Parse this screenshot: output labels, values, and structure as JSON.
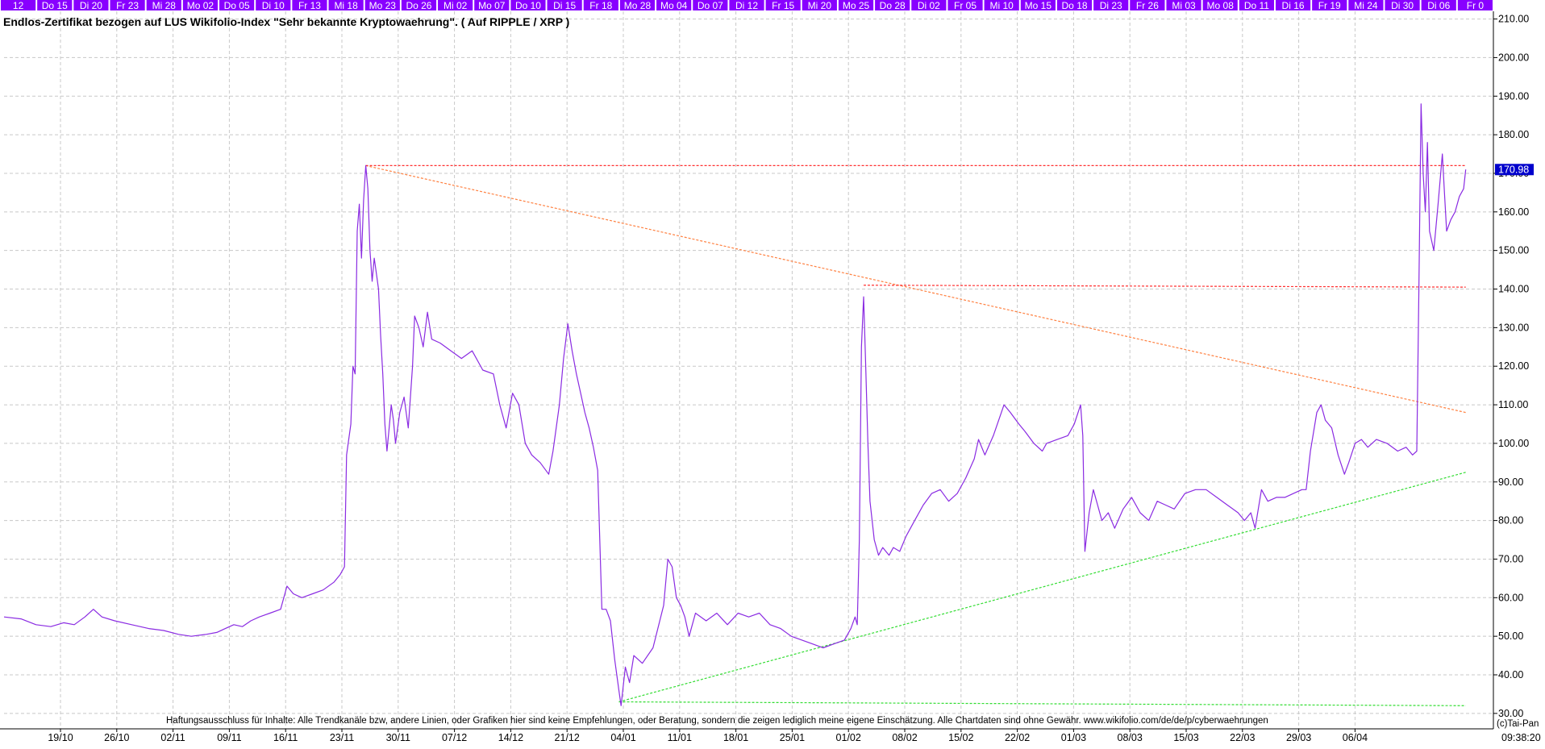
{
  "chart_data": {
    "type": "line",
    "title": "Endlos-Zertifikat bezogen auf LUS Wikifolio-Index \"Sehr bekannte Kryptowaehrung\". ( Auf RIPPLE / XRP )",
    "xlabel": "",
    "ylabel": "",
    "ylim": [
      26,
      212
    ],
    "yticks": [
      "30.00",
      "40.00",
      "50.00",
      "60.00",
      "70.00",
      "80.00",
      "90.00",
      "100.00",
      "110.00",
      "120.00",
      "130.00",
      "140.00",
      "150.00",
      "160.00",
      "170.00",
      "180.00",
      "190.00",
      "200.00",
      "210.00"
    ],
    "grid": true,
    "legend": "none",
    "x_tick_labels": [
      "19/10",
      "26/10",
      "02/11",
      "09/11",
      "16/11",
      "23/11",
      "30/11",
      "07/12",
      "14/12",
      "21/12",
      "04/01",
      "11/01",
      "18/01",
      "25/01",
      "01/02",
      "08/02",
      "15/02",
      "22/02",
      "01/03",
      "08/03",
      "15/03",
      "22/03",
      "29/03",
      "06/04"
    ],
    "top_day_labels": [
      "12",
      "Do 15",
      "Di 20",
      "Fr 23",
      "Mi 28",
      "Mo 02",
      "Do 05",
      "Di 10",
      "Fr 13",
      "Mi 18",
      "Mo 23",
      "Do 26",
      "Mi 02",
      "Mo 07",
      "Do 10",
      "Di 15",
      "Fr 18",
      "Mo 28",
      "Mo 04",
      "Do 07",
      "Di 12",
      "Fr 15",
      "Mi 20",
      "Mo 25",
      "Do 28",
      "Di 02",
      "Fr 05",
      "Mi 10",
      "Mo 15",
      "Do 18",
      "Di 23",
      "Fr 26",
      "Mi 03",
      "Mo 08",
      "Do 11",
      "Di 16",
      "Fr 19",
      "Mi 24",
      "Di 30",
      "Di 06",
      "Fr 0"
    ],
    "last_value": "170.98",
    "time_label": "09:38:20",
    "copyright": "(c)Tai-Pan",
    "disclaimer": "Haftungsausschluss für Inhalte: Alle Trendkanäle bzw, andere Linien, oder Grafiken hier sind keine Empfehlungen, oder Beratung, sondern die zeigen lediglich meine eigene Einschätzung. Alle Chartdaten sind ohne Gewähr.  www.wikifolio.com/de/de/p/cyberwaehrungen",
    "series": [
      {
        "color": "#8a2be2",
        "points": [
          [
            0,
            55
          ],
          [
            8,
            54.5
          ],
          [
            15,
            53
          ],
          [
            22,
            52.5
          ],
          [
            28,
            53.5
          ],
          [
            33,
            53
          ],
          [
            38,
            55
          ],
          [
            42,
            57
          ],
          [
            46,
            55
          ],
          [
            52,
            54
          ],
          [
            60,
            53
          ],
          [
            68,
            52
          ],
          [
            75,
            51.5
          ],
          [
            82,
            50.5
          ],
          [
            88,
            50
          ],
          [
            95,
            50.5
          ],
          [
            100,
            51
          ],
          [
            104,
            52
          ],
          [
            108,
            53
          ],
          [
            112,
            52.5
          ],
          [
            116,
            54
          ],
          [
            120,
            55
          ],
          [
            125,
            56
          ],
          [
            130,
            57
          ],
          [
            133,
            63
          ],
          [
            136,
            61
          ],
          [
            140,
            60
          ],
          [
            145,
            61
          ],
          [
            150,
            62
          ],
          [
            155,
            64
          ],
          [
            158,
            66
          ],
          [
            160,
            68
          ],
          [
            161,
            97
          ],
          [
            163,
            105
          ],
          [
            164,
            120
          ],
          [
            165,
            118
          ],
          [
            166,
            155
          ],
          [
            167,
            162
          ],
          [
            168,
            148
          ],
          [
            169,
            163
          ],
          [
            170,
            172
          ],
          [
            171,
            166
          ],
          [
            172,
            150
          ],
          [
            173,
            142
          ],
          [
            174,
            148
          ],
          [
            175,
            144
          ],
          [
            176,
            140
          ],
          [
            177,
            128
          ],
          [
            178,
            118
          ],
          [
            179,
            105
          ],
          [
            180,
            98
          ],
          [
            181,
            104
          ],
          [
            182,
            110
          ],
          [
            183,
            106
          ],
          [
            184,
            100
          ],
          [
            186,
            108
          ],
          [
            188,
            112
          ],
          [
            190,
            104
          ],
          [
            192,
            120
          ],
          [
            193,
            133
          ],
          [
            195,
            130
          ],
          [
            197,
            125
          ],
          [
            199,
            134
          ],
          [
            201,
            127
          ],
          [
            205,
            126
          ],
          [
            210,
            124
          ],
          [
            215,
            122
          ],
          [
            220,
            124
          ],
          [
            225,
            119
          ],
          [
            230,
            118
          ],
          [
            233,
            110
          ],
          [
            236,
            104
          ],
          [
            239,
            113
          ],
          [
            242,
            110
          ],
          [
            245,
            100
          ],
          [
            248,
            97
          ],
          [
            252,
            95
          ],
          [
            256,
            92
          ],
          [
            258,
            98
          ],
          [
            261,
            110
          ],
          [
            263,
            122
          ],
          [
            265,
            131
          ],
          [
            267,
            124
          ],
          [
            269,
            118
          ],
          [
            271,
            113
          ],
          [
            273,
            108
          ],
          [
            275,
            104
          ],
          [
            277,
            99
          ],
          [
            279,
            93
          ],
          [
            281,
            57
          ],
          [
            283,
            57
          ],
          [
            285,
            54
          ],
          [
            287,
            44
          ],
          [
            289,
            36
          ],
          [
            290,
            32
          ],
          [
            292,
            42
          ],
          [
            294,
            38
          ],
          [
            296,
            45
          ],
          [
            300,
            43
          ],
          [
            305,
            47
          ],
          [
            310,
            58
          ],
          [
            312,
            70
          ],
          [
            314,
            68
          ],
          [
            316,
            60
          ],
          [
            318,
            58
          ],
          [
            320,
            55
          ],
          [
            322,
            50
          ],
          [
            325,
            56
          ],
          [
            330,
            54
          ],
          [
            335,
            56
          ],
          [
            340,
            53
          ],
          [
            345,
            56
          ],
          [
            350,
            55
          ],
          [
            355,
            56
          ],
          [
            360,
            53
          ],
          [
            365,
            52
          ],
          [
            370,
            50
          ],
          [
            375,
            49
          ],
          [
            380,
            48
          ],
          [
            385,
            47
          ],
          [
            390,
            48
          ],
          [
            395,
            49
          ],
          [
            398,
            52
          ],
          [
            400,
            55
          ],
          [
            401,
            53
          ],
          [
            402,
            75
          ],
          [
            403,
            125
          ],
          [
            404,
            138
          ],
          [
            405,
            120
          ],
          [
            406,
            100
          ],
          [
            407,
            85
          ],
          [
            409,
            75
          ],
          [
            411,
            71
          ],
          [
            413,
            73
          ],
          [
            416,
            71
          ],
          [
            418,
            73
          ],
          [
            421,
            72
          ],
          [
            424,
            76
          ],
          [
            428,
            80
          ],
          [
            432,
            84
          ],
          [
            436,
            87
          ],
          [
            440,
            88
          ],
          [
            444,
            85
          ],
          [
            448,
            87
          ],
          [
            452,
            91
          ],
          [
            456,
            96
          ],
          [
            458,
            101
          ],
          [
            461,
            97
          ],
          [
            465,
            102
          ],
          [
            470,
            110
          ],
          [
            473,
            108
          ],
          [
            477,
            105
          ],
          [
            480,
            103
          ],
          [
            484,
            100
          ],
          [
            488,
            98
          ],
          [
            490,
            100
          ],
          [
            495,
            101
          ],
          [
            500,
            102
          ],
          [
            503,
            105
          ],
          [
            506,
            110
          ],
          [
            507,
            102
          ],
          [
            508,
            72
          ],
          [
            510,
            82
          ],
          [
            512,
            88
          ],
          [
            514,
            84
          ],
          [
            516,
            80
          ],
          [
            519,
            82
          ],
          [
            522,
            78
          ],
          [
            526,
            83
          ],
          [
            530,
            86
          ],
          [
            534,
            82
          ],
          [
            538,
            80
          ],
          [
            542,
            85
          ],
          [
            546,
            84
          ],
          [
            550,
            83
          ],
          [
            555,
            87
          ],
          [
            560,
            88
          ],
          [
            565,
            88
          ],
          [
            570,
            86
          ],
          [
            575,
            84
          ],
          [
            580,
            82
          ],
          [
            583,
            80
          ],
          [
            586,
            82
          ],
          [
            588,
            78
          ],
          [
            591,
            88
          ],
          [
            594,
            85
          ],
          [
            598,
            86
          ],
          [
            602,
            86
          ],
          [
            606,
            87
          ],
          [
            610,
            88
          ],
          [
            612,
            88
          ],
          [
            614,
            98
          ],
          [
            617,
            108
          ],
          [
            619,
            110
          ],
          [
            621,
            106
          ],
          [
            624,
            104
          ],
          [
            627,
            97
          ],
          [
            630,
            92
          ],
          [
            632,
            95
          ],
          [
            635,
            100
          ],
          [
            638,
            101
          ],
          [
            641,
            99
          ],
          [
            645,
            101
          ],
          [
            650,
            100
          ],
          [
            655,
            98
          ],
          [
            659,
            99
          ],
          [
            662,
            97
          ],
          [
            664,
            98
          ],
          [
            665,
            140
          ],
          [
            666,
            188
          ],
          [
            667,
            170
          ],
          [
            668,
            160
          ],
          [
            669,
            178
          ],
          [
            670,
            155
          ],
          [
            672,
            150
          ],
          [
            674,
            162
          ],
          [
            676,
            175
          ],
          [
            677,
            165
          ],
          [
            678,
            155
          ],
          [
            680,
            158
          ],
          [
            682,
            160
          ],
          [
            684,
            164
          ],
          [
            686,
            166
          ],
          [
            687,
            171
          ]
        ]
      }
    ],
    "trendlines": [
      {
        "color": "#ff8040",
        "from": [
          170,
          172
        ],
        "to": [
          687,
          108
        ]
      },
      {
        "color": "#ff3030",
        "from": [
          170,
          172
        ],
        "to": [
          687,
          172
        ]
      },
      {
        "color": "#ff3030",
        "from": [
          404,
          141
        ],
        "to": [
          687,
          140.5
        ]
      },
      {
        "color": "#33dd33",
        "from": [
          289,
          33
        ],
        "to": [
          687,
          92.5
        ]
      },
      {
        "color": "#33dd33",
        "from": [
          289,
          33
        ],
        "to": [
          687,
          32
        ]
      }
    ]
  }
}
